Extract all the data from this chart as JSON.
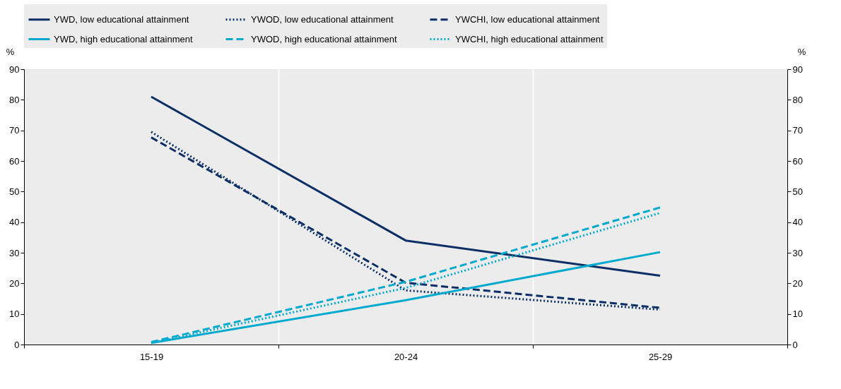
{
  "chart_data": {
    "type": "line",
    "categories": [
      "15-19",
      "20-24",
      "25-29"
    ],
    "ylabel": "%",
    "y2label": "%",
    "ylim": [
      0,
      90
    ],
    "yticks": [
      0,
      10,
      20,
      30,
      40,
      50,
      60,
      70,
      80,
      90
    ],
    "y2lim": [
      0,
      90
    ],
    "y2ticks": [
      0,
      10,
      20,
      30,
      40,
      50,
      60,
      70,
      80,
      90
    ],
    "grid": "x",
    "legend": "top",
    "marker": "none",
    "series": [
      {
        "name": "YWD, low educational attainment",
        "color": "#0b2f64",
        "line_style": "solid",
        "values": [
          81,
          34,
          22.5
        ]
      },
      {
        "name": "YWOD, low educational attainment",
        "color": "#0b2f64",
        "line_style": "dotted",
        "values": [
          69.5,
          17.7,
          11.4
        ]
      },
      {
        "name": "YWCHI, low educational attainment",
        "color": "#0b2f64",
        "line_style": "dashed",
        "values": [
          67.7,
          20.2,
          12
        ]
      },
      {
        "name": "YWD, high educational attainment",
        "color": "#00a9ce",
        "line_style": "solid",
        "values": [
          0.5,
          14.5,
          30.2
        ]
      },
      {
        "name": "YWOD, high educational attainment",
        "color": "#00a9ce",
        "line_style": "dashed",
        "values": [
          0.8,
          20.5,
          44.8
        ]
      },
      {
        "name": "YWCHI, high educational attainment",
        "color": "#00a9ce",
        "line_style": "dotted",
        "values": [
          0.5,
          18.5,
          43
        ]
      }
    ]
  }
}
